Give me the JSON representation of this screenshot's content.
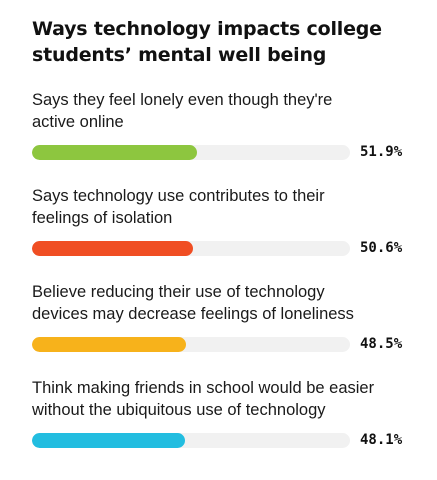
{
  "chart_data": {
    "type": "bar",
    "title": "Ways technology impacts college students’ mental well being",
    "orientation": "horizontal",
    "xlim": [
      0,
      100
    ],
    "categories": [
      "Says they feel lonely even though they're active online",
      "Says technology use contributes to their feelings of isolation",
      "Believe reducing their use of technology devices may decrease feelings of loneliness",
      "Think making friends in school would be easier without the ubiquitous use of technology"
    ],
    "values": [
      51.9,
      50.6,
      48.5,
      48.1
    ],
    "value_labels": [
      "51.9%",
      "50.6%",
      "48.5%",
      "48.1%"
    ],
    "colors": [
      "#8dc63f",
      "#f04e23",
      "#f7b21b",
      "#22bde0"
    ],
    "track_color": "#f1f1f1",
    "grid": false,
    "legend": "none"
  }
}
